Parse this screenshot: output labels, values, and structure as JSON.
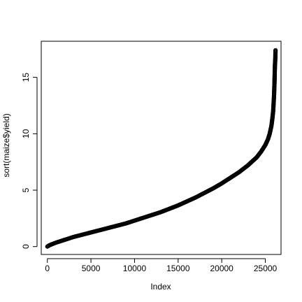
{
  "chart_data": {
    "type": "scatter",
    "title": "",
    "xlabel": "Index",
    "ylabel": "sort(maize$yield)",
    "xlim": [
      -700,
      26800
    ],
    "ylim": [
      -0.7,
      18.2
    ],
    "x_ticks": [
      0,
      5000,
      10000,
      15000,
      20000,
      25000
    ],
    "y_ticks": [
      0,
      5,
      10,
      15
    ],
    "marker": "open-circle",
    "marker_color": "#000000",
    "grid": false,
    "legend": null,
    "series": [
      {
        "x": [
          1,
          200,
          500,
          1000,
          2000,
          3000,
          4000,
          5000,
          6000,
          7000,
          8000,
          9000,
          10000,
          11000,
          12000,
          13000,
          14000,
          15000,
          16000,
          17000,
          18000,
          19000,
          20000,
          21000,
          22000,
          23000,
          24000,
          24500,
          25000,
          25300,
          25500,
          25700,
          25800,
          25900,
          25950,
          26000,
          26050,
          26080,
          26100,
          26120,
          26140,
          26150,
          26160,
          26170
        ],
        "y": [
          0.0,
          0.1,
          0.2,
          0.35,
          0.6,
          0.85,
          1.05,
          1.25,
          1.45,
          1.65,
          1.85,
          2.05,
          2.3,
          2.55,
          2.8,
          3.05,
          3.35,
          3.65,
          4.0,
          4.35,
          4.75,
          5.15,
          5.6,
          6.1,
          6.6,
          7.2,
          7.9,
          8.4,
          9.0,
          9.5,
          10.0,
          10.7,
          11.3,
          12.0,
          12.7,
          13.4,
          14.5,
          15.5,
          16.0,
          16.3,
          16.6,
          16.8,
          17.2,
          17.4
        ]
      }
    ]
  }
}
